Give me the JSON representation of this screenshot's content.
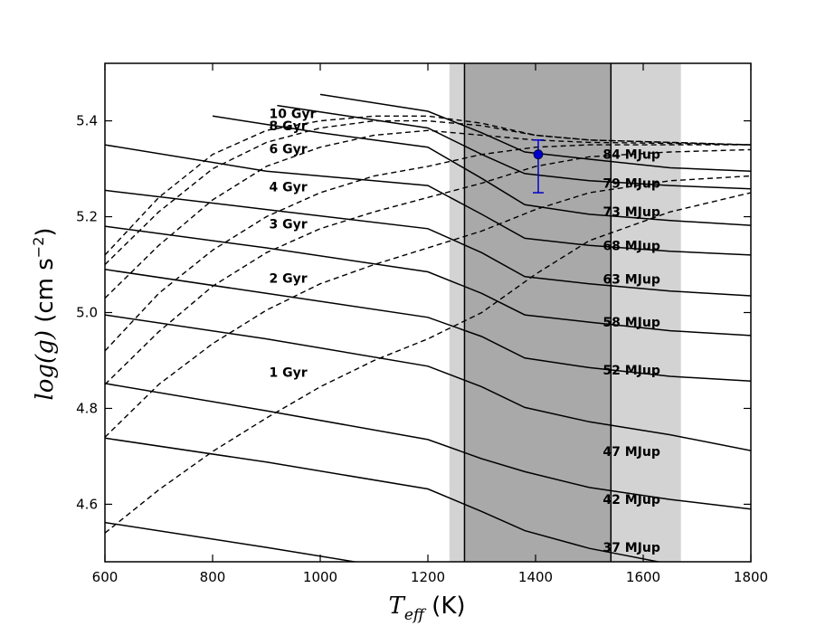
{
  "chart_data": {
    "type": "line",
    "xlabel_math": "T",
    "xlabel_sub": "eff",
    "xlabel_unit": " (K)",
    "ylabel_math": "log(g)",
    "ylabel_unit": " (cm s",
    "ylabel_exp": "−2",
    "ylabel_close": ")",
    "xlim": [
      600,
      1800
    ],
    "ylim": [
      4.48,
      5.52
    ],
    "xticks": [
      600,
      800,
      1000,
      1200,
      1400,
      1600,
      1800
    ],
    "xtick_labels": [
      "600",
      "800",
      "1000",
      "1200",
      "1400",
      "1600",
      "1800"
    ],
    "yticks": [
      4.6,
      4.8,
      5.0,
      5.2,
      5.4
    ],
    "ytick_labels": [
      "4.6",
      "4.8",
      "5.0",
      "5.2",
      "5.4"
    ],
    "shaded_bands": [
      {
        "x0": 1240,
        "x1": 1670,
        "color": "#d3d3d3"
      },
      {
        "x0": 1268,
        "x1": 1540,
        "color": "#a9a9a9"
      }
    ],
    "vertical_lines": [
      1268,
      1540
    ],
    "measurement": {
      "x": 1405,
      "y": 5.33,
      "yerr_low": 0.08,
      "yerr_high": 0.03,
      "color": "#0000cc"
    },
    "isomass_tracks": [
      {
        "name": "84 MJup",
        "label_at": [
          1525,
          5.33
        ],
        "points": [
          [
            1000,
            5.455
          ],
          [
            1200,
            5.42
          ],
          [
            1300,
            5.375
          ],
          [
            1380,
            5.335
          ],
          [
            1500,
            5.32
          ],
          [
            1650,
            5.302
          ],
          [
            1800,
            5.295
          ]
        ]
      },
      {
        "name": "79 MJup",
        "label_at": [
          1525,
          5.27
        ],
        "points": [
          [
            920,
            5.432
          ],
          [
            1200,
            5.385
          ],
          [
            1300,
            5.33
          ],
          [
            1380,
            5.29
          ],
          [
            1500,
            5.275
          ],
          [
            1650,
            5.265
          ],
          [
            1800,
            5.258
          ]
        ]
      },
      {
        "name": "73 MJup",
        "label_at": [
          1525,
          5.21
        ],
        "points": [
          [
            800,
            5.41
          ],
          [
            1000,
            5.375
          ],
          [
            1200,
            5.345
          ],
          [
            1300,
            5.28
          ],
          [
            1380,
            5.225
          ],
          [
            1500,
            5.205
          ],
          [
            1650,
            5.192
          ],
          [
            1800,
            5.182
          ]
        ]
      },
      {
        "name": "68 MJup",
        "label_at": [
          1525,
          5.14
        ],
        "points": [
          [
            600,
            5.35
          ],
          [
            900,
            5.295
          ],
          [
            1200,
            5.265
          ],
          [
            1300,
            5.205
          ],
          [
            1380,
            5.155
          ],
          [
            1500,
            5.14
          ],
          [
            1650,
            5.128
          ],
          [
            1800,
            5.12
          ]
        ]
      },
      {
        "name": "63 MJup",
        "label_at": [
          1525,
          5.07
        ],
        "points": [
          [
            600,
            5.255
          ],
          [
            900,
            5.215
          ],
          [
            1200,
            5.175
          ],
          [
            1300,
            5.125
          ],
          [
            1380,
            5.075
          ],
          [
            1500,
            5.06
          ],
          [
            1650,
            5.045
          ],
          [
            1800,
            5.035
          ]
        ]
      },
      {
        "name": "58 MJup",
        "label_at": [
          1525,
          4.98
        ],
        "points": [
          [
            600,
            5.18
          ],
          [
            900,
            5.135
          ],
          [
            1200,
            5.085
          ],
          [
            1300,
            5.04
          ],
          [
            1380,
            4.995
          ],
          [
            1500,
            4.98
          ],
          [
            1650,
            4.962
          ],
          [
            1800,
            4.952
          ]
        ]
      },
      {
        "name": "52 MJup",
        "label_at": [
          1525,
          4.88
        ],
        "points": [
          [
            600,
            5.09
          ],
          [
            900,
            5.04
          ],
          [
            1200,
            4.99
          ],
          [
            1300,
            4.95
          ],
          [
            1380,
            4.905
          ],
          [
            1500,
            4.885
          ],
          [
            1650,
            4.867
          ],
          [
            1800,
            4.857
          ]
        ]
      },
      {
        "name": "47 MJup",
        "label_at": [
          1525,
          4.71
        ],
        "points": [
          [
            600,
            4.995
          ],
          [
            900,
            4.945
          ],
          [
            1200,
            4.888
          ],
          [
            1300,
            4.845
          ],
          [
            1380,
            4.802
          ],
          [
            1500,
            4.772
          ],
          [
            1650,
            4.745
          ],
          [
            1800,
            4.712
          ]
        ]
      },
      {
        "name": "42 MJup",
        "label_at": [
          1525,
          4.61
        ],
        "points": [
          [
            600,
            4.852
          ],
          [
            900,
            4.795
          ],
          [
            1200,
            4.735
          ],
          [
            1300,
            4.695
          ],
          [
            1380,
            4.668
          ],
          [
            1500,
            4.635
          ],
          [
            1650,
            4.61
          ],
          [
            1800,
            4.59
          ]
        ]
      },
      {
        "name": "37 MJup",
        "label_at": [
          1525,
          4.51
        ],
        "points": [
          [
            600,
            4.738
          ],
          [
            900,
            4.688
          ],
          [
            1200,
            4.632
          ],
          [
            1300,
            4.585
          ],
          [
            1380,
            4.545
          ],
          [
            1500,
            4.508
          ],
          [
            1650,
            4.475
          ],
          [
            1800,
            4.452
          ]
        ]
      },
      {
        "name": "",
        "label_at": null,
        "points": [
          [
            600,
            4.562
          ],
          [
            900,
            4.51
          ],
          [
            1200,
            4.455
          ]
        ]
      }
    ],
    "isochrones": [
      {
        "name": "10 Gyr",
        "label_at": [
          905,
          5.415
        ],
        "points": [
          [
            600,
            5.12
          ],
          [
            700,
            5.24
          ],
          [
            800,
            5.33
          ],
          [
            900,
            5.38
          ],
          [
            1000,
            5.4
          ],
          [
            1100,
            5.41
          ],
          [
            1200,
            5.41
          ],
          [
            1300,
            5.395
          ],
          [
            1400,
            5.37
          ],
          [
            1500,
            5.36
          ],
          [
            1650,
            5.355
          ],
          [
            1800,
            5.35
          ]
        ]
      },
      {
        "name": "8 Gyr",
        "label_at": [
          905,
          5.39
        ],
        "points": [
          [
            600,
            5.1
          ],
          [
            700,
            5.21
          ],
          [
            800,
            5.3
          ],
          [
            900,
            5.355
          ],
          [
            1000,
            5.385
          ],
          [
            1100,
            5.4
          ],
          [
            1200,
            5.4
          ],
          [
            1300,
            5.39
          ],
          [
            1400,
            5.37
          ],
          [
            1500,
            5.36
          ],
          [
            1650,
            5.355
          ],
          [
            1800,
            5.35
          ]
        ]
      },
      {
        "name": "6 Gyr",
        "label_at": [
          905,
          5.342
        ],
        "points": [
          [
            600,
            5.03
          ],
          [
            700,
            5.14
          ],
          [
            800,
            5.235
          ],
          [
            900,
            5.305
          ],
          [
            1000,
            5.345
          ],
          [
            1100,
            5.37
          ],
          [
            1200,
            5.38
          ],
          [
            1300,
            5.37
          ],
          [
            1400,
            5.36
          ],
          [
            1500,
            5.355
          ],
          [
            1650,
            5.353
          ],
          [
            1800,
            5.35
          ]
        ]
      },
      {
        "name": "4 Gyr",
        "label_at": [
          905,
          5.262
        ],
        "points": [
          [
            600,
            4.92
          ],
          [
            700,
            5.04
          ],
          [
            800,
            5.13
          ],
          [
            900,
            5.2
          ],
          [
            1000,
            5.25
          ],
          [
            1100,
            5.285
          ],
          [
            1200,
            5.305
          ],
          [
            1300,
            5.33
          ],
          [
            1400,
            5.345
          ],
          [
            1500,
            5.35
          ],
          [
            1650,
            5.35
          ],
          [
            1800,
            5.35
          ]
        ]
      },
      {
        "name": "3 Gyr",
        "label_at": [
          905,
          5.185
        ],
        "points": [
          [
            600,
            4.85
          ],
          [
            700,
            4.96
          ],
          [
            800,
            5.055
          ],
          [
            900,
            5.125
          ],
          [
            1000,
            5.175
          ],
          [
            1100,
            5.21
          ],
          [
            1200,
            5.24
          ],
          [
            1300,
            5.27
          ],
          [
            1400,
            5.305
          ],
          [
            1500,
            5.325
          ],
          [
            1650,
            5.335
          ],
          [
            1800,
            5.34
          ]
        ]
      },
      {
        "name": "2 Gyr",
        "label_at": [
          905,
          5.072
        ],
        "points": [
          [
            600,
            4.74
          ],
          [
            700,
            4.85
          ],
          [
            800,
            4.935
          ],
          [
            900,
            5.005
          ],
          [
            1000,
            5.06
          ],
          [
            1100,
            5.1
          ],
          [
            1200,
            5.135
          ],
          [
            1300,
            5.17
          ],
          [
            1400,
            5.215
          ],
          [
            1500,
            5.25
          ],
          [
            1650,
            5.275
          ],
          [
            1800,
            5.285
          ]
        ]
      },
      {
        "name": "1 Gyr",
        "label_at": [
          905,
          4.875
        ],
        "points": [
          [
            600,
            4.54
          ],
          [
            700,
            4.63
          ],
          [
            800,
            4.71
          ],
          [
            900,
            4.78
          ],
          [
            1000,
            4.845
          ],
          [
            1100,
            4.9
          ],
          [
            1200,
            4.945
          ],
          [
            1300,
            5.0
          ],
          [
            1400,
            5.08
          ],
          [
            1500,
            5.15
          ],
          [
            1650,
            5.21
          ],
          [
            1800,
            5.25
          ]
        ]
      }
    ]
  }
}
